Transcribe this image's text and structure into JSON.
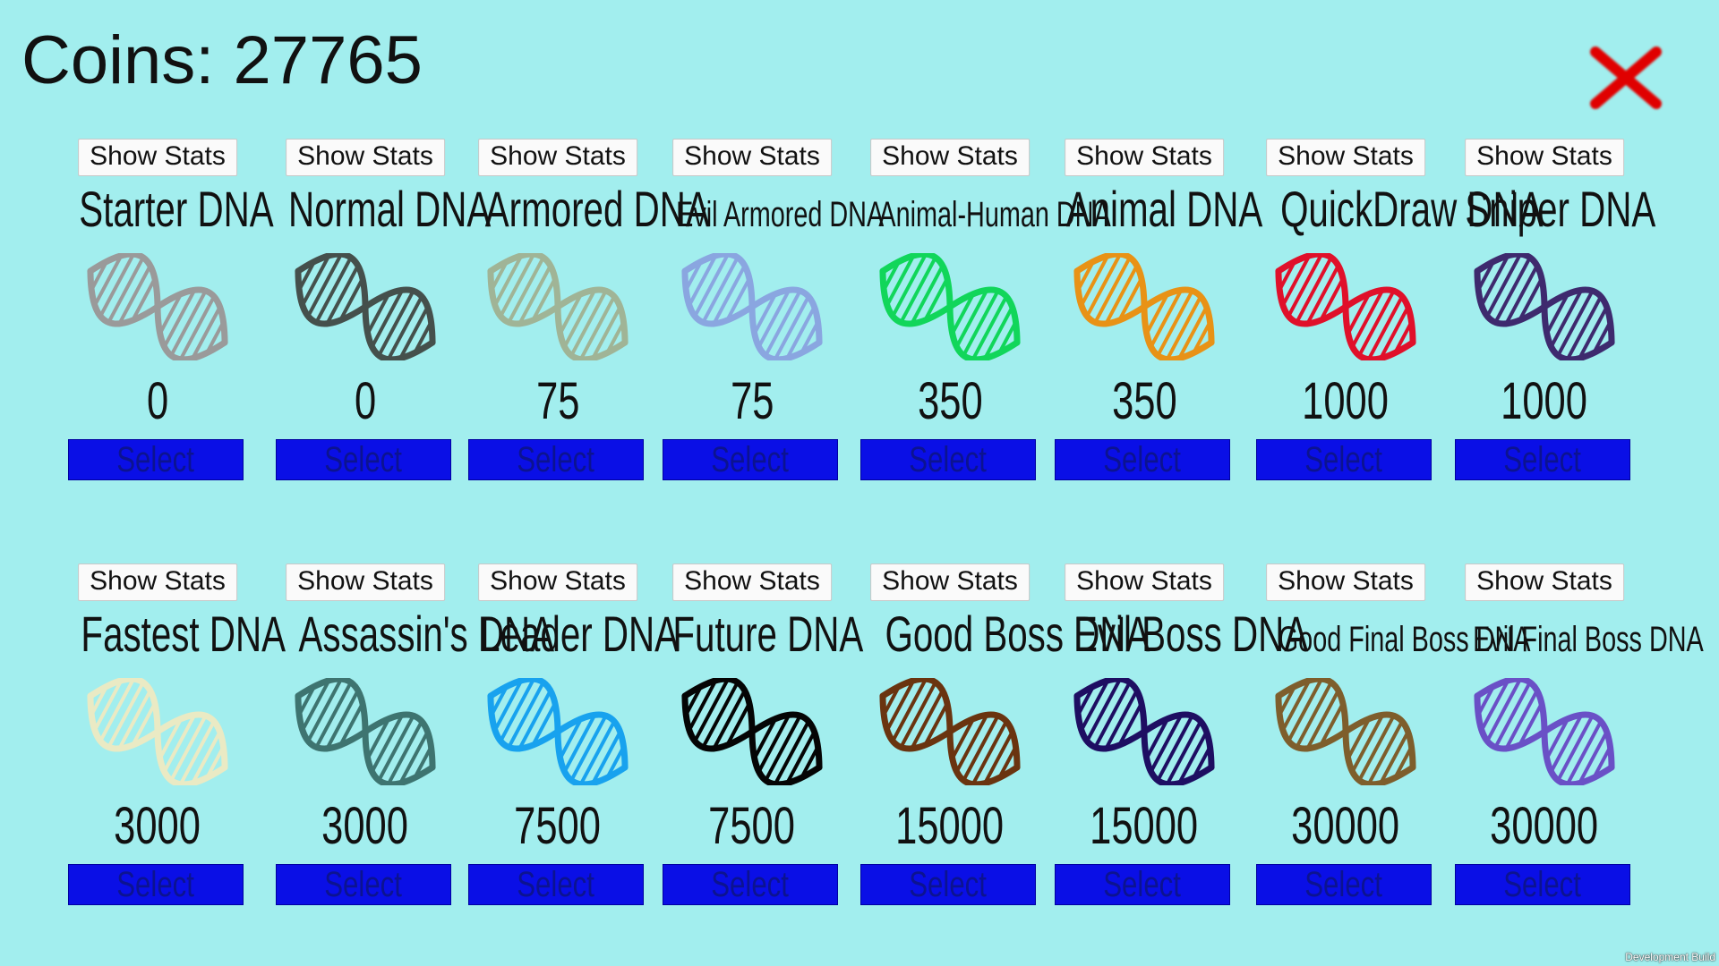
{
  "header": {
    "coins_label": "Coins: 27765"
  },
  "close": {
    "icon": "close-icon",
    "color": "#e00000"
  },
  "button_labels": {
    "show_stats": "Show Stats",
    "select": "Select"
  },
  "footer": {
    "build_label": "Development Build"
  },
  "dna_items": [
    {
      "name": "Starter DNA",
      "price": "0",
      "color": "#9a9a9a"
    },
    {
      "name": "Normal DNA",
      "price": "0",
      "color": "#45504c"
    },
    {
      "name": "Armored DNA",
      "price": "75",
      "color": "#a0b496"
    },
    {
      "name": "Evil Armored DNA",
      "price": "75",
      "color": "#8aa6e0"
    },
    {
      "name": "Animal-Human DNA",
      "price": "350",
      "color": "#11d65a"
    },
    {
      "name": "Animal DNA",
      "price": "350",
      "color": "#e89216"
    },
    {
      "name": "QuickDraw DNA",
      "price": "1000",
      "color": "#e0102a"
    },
    {
      "name": "Sniper DNA",
      "price": "1000",
      "color": "#3e2a6e"
    },
    {
      "name": "Fastest DNA",
      "price": "3000",
      "color": "#eaeac4"
    },
    {
      "name": "Assassin's DNA",
      "price": "3000",
      "color": "#3e7470"
    },
    {
      "name": "Leader DNA",
      "price": "7500",
      "color": "#18a2ee"
    },
    {
      "name": "Future DNA",
      "price": "7500",
      "color": "#050505"
    },
    {
      "name": "Good Boss DNA",
      "price": "15000",
      "color": "#6a3410"
    },
    {
      "name": "Evil Boss DNA",
      "price": "15000",
      "color": "#1e0e62"
    },
    {
      "name": "Good Final Boss DNA",
      "price": "30000",
      "color": "#7e5e2c"
    },
    {
      "name": "Evil Final Boss DNA",
      "price": "30000",
      "color": "#6a50c6"
    }
  ]
}
